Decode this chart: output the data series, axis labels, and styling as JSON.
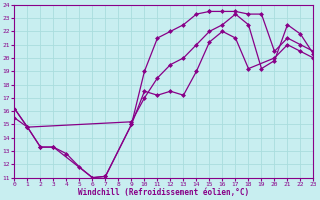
{
  "xlabel": "Windchill (Refroidissement éolien,°C)",
  "bg_color": "#c8eef0",
  "line_color": "#880088",
  "grid_color": "#aadddd",
  "xlim": [
    0,
    23
  ],
  "ylim": [
    11,
    24
  ],
  "xticks": [
    0,
    1,
    2,
    3,
    4,
    5,
    6,
    7,
    8,
    9,
    10,
    11,
    12,
    13,
    14,
    15,
    16,
    17,
    18,
    19,
    20,
    21,
    22,
    23
  ],
  "yticks": [
    11,
    12,
    13,
    14,
    15,
    16,
    17,
    18,
    19,
    20,
    21,
    22,
    23,
    24
  ],
  "curve1_x": [
    0,
    1,
    2,
    3,
    6,
    7,
    9,
    10,
    11,
    12,
    13,
    14,
    15,
    16,
    17,
    18,
    20,
    21,
    22,
    23
  ],
  "curve1_y": [
    16.2,
    14.8,
    13.3,
    13.3,
    11.0,
    11.1,
    15.0,
    17.5,
    17.2,
    17.5,
    17.2,
    19.0,
    21.2,
    22.0,
    21.5,
    19.2,
    20.0,
    21.0,
    20.5,
    20.0
  ],
  "curve2_x": [
    0,
    1,
    2,
    3,
    4,
    5,
    6,
    7,
    9,
    10,
    11,
    12,
    13,
    14,
    15,
    15,
    16,
    17,
    18,
    19,
    20,
    21,
    22,
    23
  ],
  "curve2_y": [
    16.2,
    14.8,
    13.3,
    13.3,
    12.8,
    11.8,
    11.0,
    11.1,
    15.0,
    19.0,
    21.5,
    22.0,
    22.5,
    23.3,
    23.5,
    23.5,
    23.5,
    23.5,
    23.3,
    23.3,
    20.5,
    21.5,
    21.0,
    20.5
  ],
  "curve3_x": [
    0,
    1,
    9,
    10,
    11,
    12,
    13,
    14,
    15,
    16,
    17,
    18,
    19,
    20,
    21,
    22,
    23
  ],
  "curve3_y": [
    15.5,
    14.8,
    15.2,
    17.0,
    18.5,
    19.5,
    20.0,
    21.0,
    22.0,
    22.5,
    23.3,
    22.5,
    19.2,
    19.8,
    22.5,
    21.8,
    20.3
  ]
}
